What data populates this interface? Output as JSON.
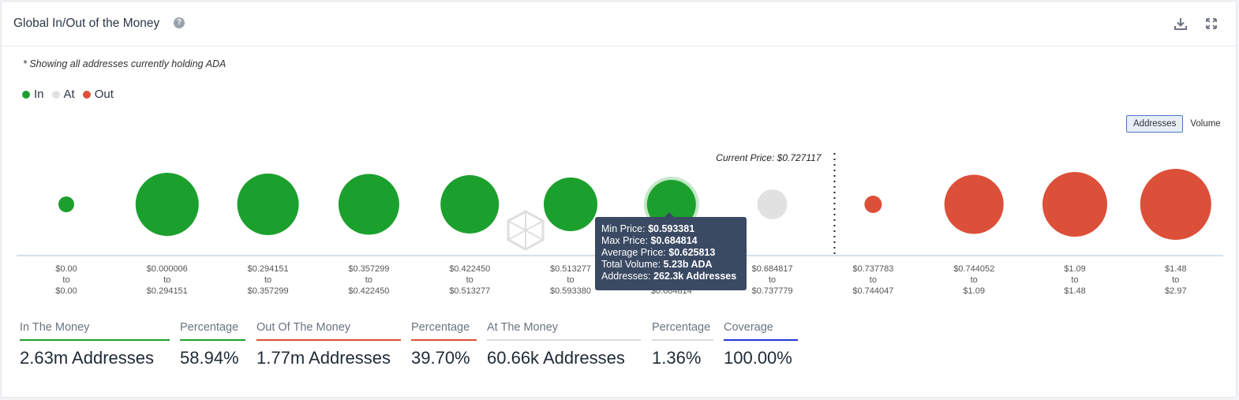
{
  "header": {
    "title": "Global In/Out of the Money",
    "help_icon": "question-circle-icon",
    "download_icon": "download-icon",
    "expand_icon": "expand-icon"
  },
  "note": "* Showing all addresses currently holding ADA",
  "legend": [
    {
      "label": "In",
      "color": "#1ca02d"
    },
    {
      "label": "At",
      "color": "#e1e1e1"
    },
    {
      "label": "Out",
      "color": "#dc4f38"
    }
  ],
  "toggle": {
    "options": [
      "Addresses",
      "Volume"
    ],
    "active": "Addresses"
  },
  "watermark_text": "IntoTheBlock",
  "chart_data": {
    "type": "bubble",
    "current_price_label": "Current Price: $0.727117",
    "current_price_index": 7.5,
    "clusters": [
      {
        "range": [
          "$0.00",
          "to",
          "$0.00"
        ],
        "status": "in",
        "size": 10
      },
      {
        "range": [
          "$0.000006",
          "to",
          "$0.294151"
        ],
        "status": "in",
        "size": 40
      },
      {
        "range": [
          "$0.294151",
          "to",
          "$0.357299"
        ],
        "status": "in",
        "size": 39
      },
      {
        "range": [
          "$0.357299",
          "to",
          "$0.422450"
        ],
        "status": "in",
        "size": 38.5
      },
      {
        "range": [
          "$0.422450",
          "to",
          "$0.513277"
        ],
        "status": "in",
        "size": 37
      },
      {
        "range": [
          "$0.513277",
          "to",
          "$0.593380"
        ],
        "status": "in",
        "size": 34
      },
      {
        "range": [
          "$0.593381",
          "to",
          "$0.684814"
        ],
        "status": "in",
        "size": 31,
        "highlighted": true
      },
      {
        "range": [
          "$0.684817",
          "to",
          "$0.737779"
        ],
        "status": "at",
        "size": 19
      },
      {
        "range": [
          "$0.737783",
          "to",
          "$0.744047"
        ],
        "status": "out",
        "size": 11
      },
      {
        "range": [
          "$0.744052",
          "to",
          "$1.09"
        ],
        "status": "out",
        "size": 37.5
      },
      {
        "range": [
          "$1.09",
          "to",
          "$1.48"
        ],
        "status": "out",
        "size": 41
      },
      {
        "range": [
          "$1.48",
          "to",
          "$2.97"
        ],
        "status": "out",
        "size": 45
      }
    ],
    "colors": {
      "in": "#1ca02d",
      "at": "#e1e1e1",
      "out": "#dc4f38"
    }
  },
  "tooltip": {
    "min_price_label": "Min Price:",
    "min_price": "$0.593381",
    "max_price_label": "Max Price:",
    "max_price": "$0.684814",
    "avg_price_label": "Average Price:",
    "avg_price": "$0.625813",
    "total_volume_label": "Total Volume:",
    "total_volume": "5.23b ADA",
    "addresses_label": "Addresses:",
    "addresses": "262.3k Addresses"
  },
  "stats": [
    {
      "label": "In The Money",
      "value": "2.63m Addresses",
      "color": "#1ca02d"
    },
    {
      "label": "Percentage",
      "value": "58.94%",
      "color": "#1ca02d"
    },
    {
      "label": "Out Of The Money",
      "value": "1.77m Addresses",
      "color": "#dc4f38"
    },
    {
      "label": "Percentage",
      "value": "39.70%",
      "color": "#dc4f38"
    },
    {
      "label": "At The Money",
      "value": "60.66k Addresses",
      "color": "#d9dbde"
    },
    {
      "label": "Percentage",
      "value": "1.36%",
      "color": "#d9dbde"
    },
    {
      "label": "Coverage",
      "value": "100.00%",
      "color": "#2433d6"
    }
  ]
}
